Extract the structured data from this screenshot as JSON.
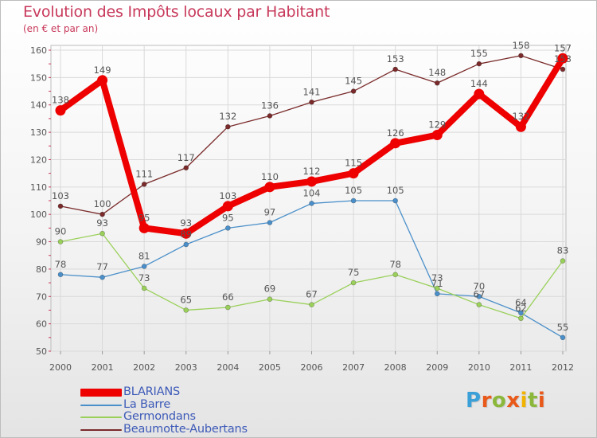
{
  "title": "Evolution des Impôts locaux par Habitant",
  "subtitle": "(en € et par an)",
  "brand": {
    "text": "Proxiti",
    "letter_colors": [
      "#3ba0d8",
      "#e8591a",
      "#8bb83a",
      "#e8591a",
      "#f1b300",
      "#8bb83a",
      "#e8591a"
    ]
  },
  "chart_data": {
    "type": "line",
    "title": "Evolution des Impôts locaux par Habitant",
    "subtitle": "(en € et par an)",
    "xlabel": "",
    "ylabel": "",
    "categories": [
      "2000",
      "2001",
      "2002",
      "2003",
      "2004",
      "2005",
      "2006",
      "2007",
      "2008",
      "2009",
      "2010",
      "2011",
      "2012"
    ],
    "ylim": [
      50,
      160
    ],
    "yticks": [
      50,
      60,
      70,
      80,
      90,
      100,
      110,
      120,
      130,
      140,
      150,
      160
    ],
    "grid": true,
    "legend_position": "bottom-left",
    "series": [
      {
        "name": "Beaumotte-Aubertans",
        "color": "#7a2a2a",
        "values": [
          103,
          100,
          111,
          117,
          132,
          136,
          141,
          145,
          153,
          148,
          155,
          158,
          153
        ],
        "labels": [
          "103",
          "100",
          "111",
          "117",
          "132",
          "136",
          "141",
          "145",
          "153",
          "148",
          "155",
          "158",
          "153"
        ]
      },
      {
        "name": "La Barre",
        "color": "#4a8fc9",
        "values": [
          78,
          77,
          81,
          89,
          95,
          97,
          104,
          105,
          105,
          71,
          70,
          64,
          55
        ],
        "labels": [
          "78",
          "77",
          "81",
          "89",
          "95",
          "97",
          "104",
          "105",
          "105",
          "71",
          "70",
          "64",
          "55"
        ]
      },
      {
        "name": "Germondans",
        "color": "#9ad05a",
        "values": [
          90,
          93,
          73,
          65,
          66,
          69,
          67,
          75,
          78,
          73,
          67,
          62,
          83
        ],
        "labels": [
          "90",
          "93",
          "73",
          "65",
          "66",
          "69",
          "67",
          "75",
          "78",
          "73",
          "67",
          "62",
          "83"
        ]
      },
      {
        "name": "BLARIANS",
        "color": "#ee0000",
        "values": [
          138,
          149,
          95,
          93,
          103,
          110,
          112,
          115,
          126,
          129,
          144,
          132,
          157
        ],
        "labels": [
          "138",
          "149",
          "95",
          "93",
          "103",
          "110",
          "112",
          "115",
          "126",
          "129",
          "144",
          "132",
          "157"
        ]
      }
    ]
  },
  "legend": [
    {
      "label": "BLARIANS",
      "color": "#ee0000"
    },
    {
      "label": "La Barre",
      "color": "#4a8fc9"
    },
    {
      "label": "Germondans",
      "color": "#9ad05a"
    },
    {
      "label": "Beaumotte-Aubertans",
      "color": "#7a2a2a"
    }
  ]
}
